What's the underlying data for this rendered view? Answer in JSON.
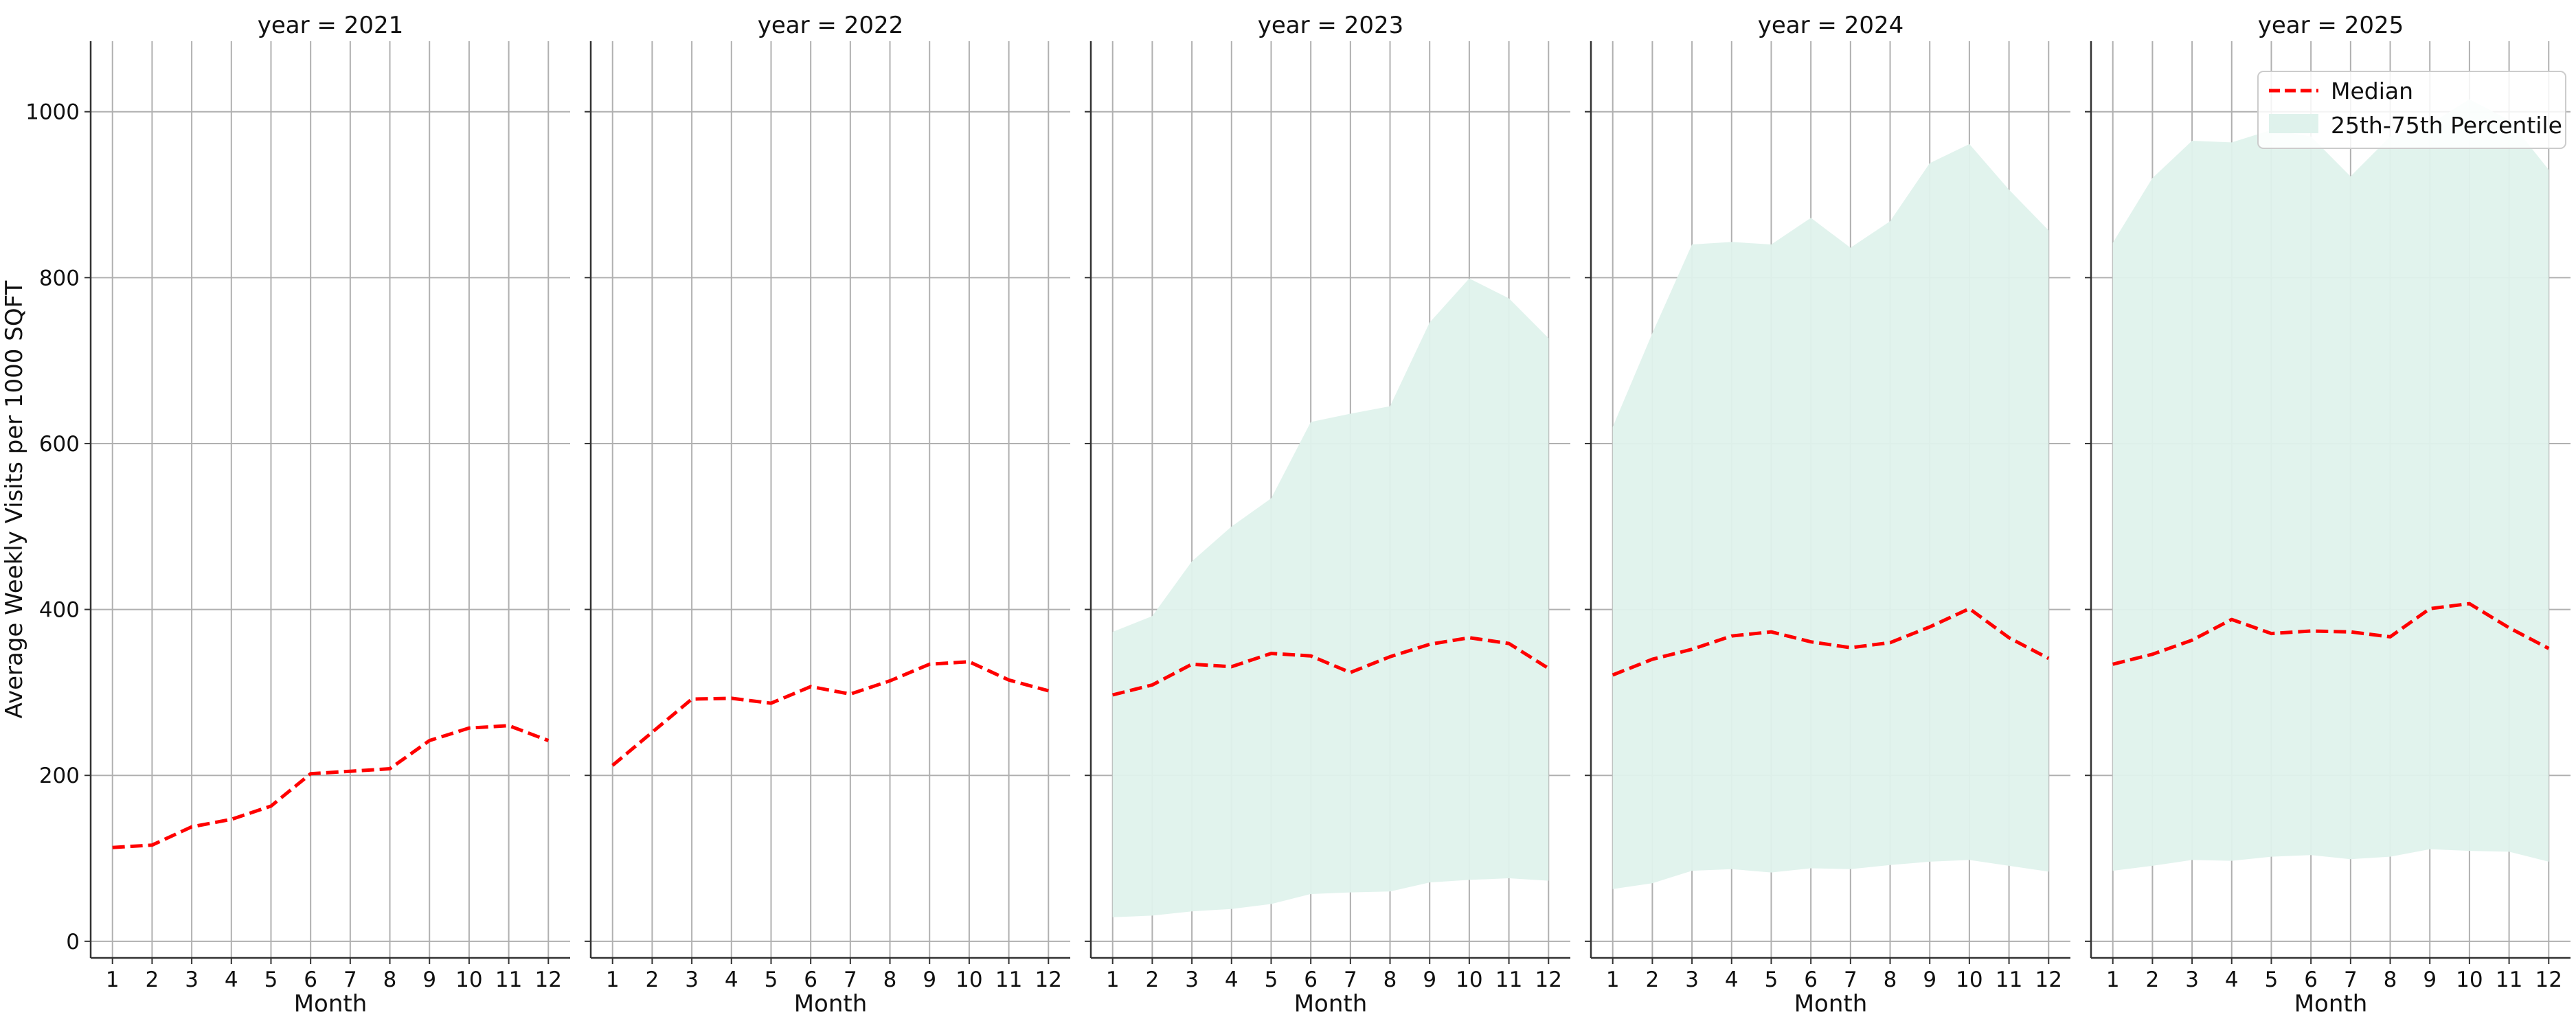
{
  "chart_data": {
    "type": "line",
    "ylabel": "Average Weekly Visits per 1000 SQFT",
    "xlabel": "Month",
    "x": [
      1,
      2,
      3,
      4,
      5,
      6,
      7,
      8,
      9,
      10,
      11,
      12
    ],
    "x_ticks": [
      "1",
      "2",
      "3",
      "4",
      "5",
      "6",
      "7",
      "8",
      "9",
      "10",
      "11",
      "12"
    ],
    "y_ticks": [
      "0",
      "200",
      "400",
      "600",
      "800",
      "1000"
    ],
    "xlim": [
      0.45,
      12.55
    ],
    "ylim": [
      -20,
      1085
    ],
    "grid": true,
    "legend": {
      "placement": "top-right",
      "entries": [
        {
          "label": "Median",
          "color": "#ff0000",
          "style": "dashed-line"
        },
        {
          "label": "25th-75th Percentile",
          "color": "#dff2ec",
          "style": "fill"
        }
      ]
    },
    "colors": {
      "median": "#ff0000",
      "band": "#dff2ec",
      "grid": "#b0b0b0",
      "axis": "#333333"
    },
    "panels": [
      {
        "title": "year = 2021",
        "median": [
          113,
          116,
          138,
          147,
          163,
          202,
          205,
          208,
          242,
          257,
          260,
          242
        ],
        "p25": null,
        "p75": null
      },
      {
        "title": "year = 2022",
        "median": [
          212,
          252,
          292,
          293,
          287,
          307,
          298,
          314,
          334,
          337,
          315,
          302
        ],
        "p25": null,
        "p75": null
      },
      {
        "title": "year = 2023",
        "median": [
          297,
          309,
          334,
          331,
          347,
          344,
          324,
          343,
          358,
          366,
          359,
          329
        ],
        "p25": [
          29,
          31,
          36,
          39,
          45,
          57,
          59,
          60,
          71,
          74,
          76,
          73
        ],
        "p75": [
          373,
          392,
          458,
          500,
          534,
          626,
          636,
          645,
          746,
          799,
          775,
          727
        ]
      },
      {
        "title": "year = 2024",
        "median": [
          321,
          340,
          352,
          368,
          373,
          361,
          354,
          360,
          379,
          401,
          366,
          341
        ],
        "p25": [
          63,
          70,
          85,
          87,
          83,
          88,
          87,
          92,
          96,
          98,
          91,
          84
        ],
        "p75": [
          620,
          733,
          840,
          843,
          840,
          872,
          836,
          868,
          938,
          961,
          906,
          857
        ]
      },
      {
        "title": "year = 2025",
        "median": [
          334,
          346,
          363,
          388,
          371,
          374,
          373,
          367,
          401,
          407,
          378,
          353
        ],
        "p25": [
          85,
          91,
          98,
          97,
          102,
          104,
          99,
          102,
          111,
          109,
          108,
          96
        ],
        "p75": [
          842,
          920,
          965,
          963,
          978,
          970,
          922,
          970,
          985,
          1015,
          990,
          930
        ]
      }
    ]
  }
}
